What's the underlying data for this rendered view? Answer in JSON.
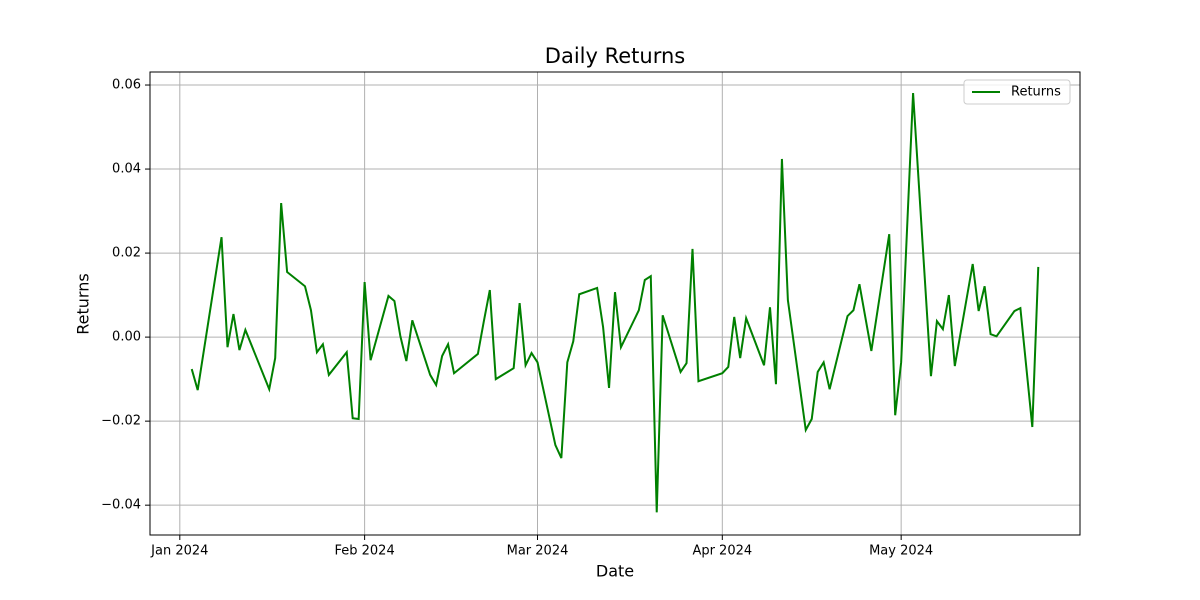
{
  "chart_data": {
    "type": "line",
    "title": "Daily Returns",
    "x_label": "Date",
    "y_label": "Returns",
    "x": [
      "2024-01-03",
      "2024-01-04",
      "2024-01-08",
      "2024-01-09",
      "2024-01-10",
      "2024-01-11",
      "2024-01-12",
      "2024-01-16",
      "2024-01-17",
      "2024-01-18",
      "2024-01-19",
      "2024-01-22",
      "2024-01-23",
      "2024-01-24",
      "2024-01-25",
      "2024-01-26",
      "2024-01-29",
      "2024-01-30",
      "2024-01-31",
      "2024-02-01",
      "2024-02-02",
      "2024-02-05",
      "2024-02-06",
      "2024-02-07",
      "2024-02-08",
      "2024-02-09",
      "2024-02-12",
      "2024-02-13",
      "2024-02-14",
      "2024-02-15",
      "2024-02-16",
      "2024-02-20",
      "2024-02-21",
      "2024-02-22",
      "2024-02-23",
      "2024-02-26",
      "2024-02-27",
      "2024-02-28",
      "2024-02-29",
      "2024-03-01",
      "2024-03-04",
      "2024-03-05",
      "2024-03-06",
      "2024-03-07",
      "2024-03-08",
      "2024-03-11",
      "2024-03-12",
      "2024-03-13",
      "2024-03-14",
      "2024-03-15",
      "2024-03-18",
      "2024-03-19",
      "2024-03-20",
      "2024-03-21",
      "2024-03-22",
      "2024-03-25",
      "2024-03-26",
      "2024-03-27",
      "2024-03-28",
      "2024-04-01",
      "2024-04-02",
      "2024-04-03",
      "2024-04-04",
      "2024-04-05",
      "2024-04-08",
      "2024-04-09",
      "2024-04-10",
      "2024-04-11",
      "2024-04-12",
      "2024-04-15",
      "2024-04-16",
      "2024-04-17",
      "2024-04-18",
      "2024-04-19",
      "2024-04-22",
      "2024-04-23",
      "2024-04-24",
      "2024-04-26",
      "2024-04-29",
      "2024-04-30",
      "2024-05-01",
      "2024-05-03",
      "2024-05-06",
      "2024-05-07",
      "2024-05-08",
      "2024-05-09",
      "2024-05-10",
      "2024-05-13",
      "2024-05-14",
      "2024-05-15",
      "2024-05-16",
      "2024-05-17",
      "2024-05-20",
      "2024-05-21",
      "2024-05-23",
      "2024-05-24"
    ],
    "series": [
      {
        "name": "Returns",
        "color": "#008000",
        "values": [
          -0.0076,
          -0.0126,
          0.0238,
          -0.0024,
          0.0055,
          -0.0031,
          0.0017,
          -0.0124,
          -0.005,
          0.0319,
          0.0155,
          0.0121,
          0.0064,
          -0.0036,
          -0.0017,
          -0.009,
          -0.0036,
          -0.0193,
          -0.0195,
          0.0131,
          -0.0055,
          0.0098,
          0.0086,
          0.0002,
          -0.0057,
          0.004,
          -0.009,
          -0.0114,
          -0.0045,
          -0.0017,
          -0.0086,
          -0.004,
          0.0038,
          0.0112,
          -0.01,
          -0.0074,
          0.0081,
          -0.0067,
          -0.0038,
          -0.006,
          -0.0257,
          -0.0288,
          -0.006,
          -0.001,
          0.0102,
          0.0117,
          0.0024,
          -0.0121,
          0.0107,
          -0.0024,
          0.0064,
          0.0136,
          0.0145,
          -0.0417,
          0.0052,
          -0.0083,
          -0.0062,
          0.021,
          -0.0105,
          -0.0086,
          -0.0071,
          0.0048,
          -0.005,
          0.0045,
          -0.0067,
          0.0071,
          -0.0112,
          0.0424,
          0.0088,
          -0.0221,
          -0.0195,
          -0.0083,
          -0.006,
          -0.0124,
          0.005,
          0.0064,
          0.0126,
          -0.0033,
          0.0245,
          -0.0186,
          -0.006,
          0.0581,
          -0.0093,
          0.0038,
          0.0019,
          0.01,
          -0.0069,
          0.0174,
          0.0062,
          0.0121,
          0.0007,
          0.0002,
          0.0062,
          0.0069,
          -0.0214,
          0.0167
        ]
      }
    ],
    "xlim": [
      "2023-12-27",
      "2024-05-31"
    ],
    "xticks": [
      {
        "value": "2024-01-01",
        "label": "Jan 2024"
      },
      {
        "value": "2024-02-01",
        "label": "Feb 2024"
      },
      {
        "value": "2024-03-01",
        "label": "Mar 2024"
      },
      {
        "value": "2024-04-01",
        "label": "Apr 2024"
      },
      {
        "value": "2024-05-01",
        "label": "May 2024"
      }
    ],
    "ylim": [
      -0.0471,
      0.0631
    ],
    "yticks": [
      {
        "value": -0.04,
        "label": "−0.04"
      },
      {
        "value": -0.02,
        "label": "−0.02"
      },
      {
        "value": 0,
        "label": "0.00"
      },
      0.02,
      0.04,
      0.06
    ],
    "grid": true,
    "legend": "upper right"
  }
}
